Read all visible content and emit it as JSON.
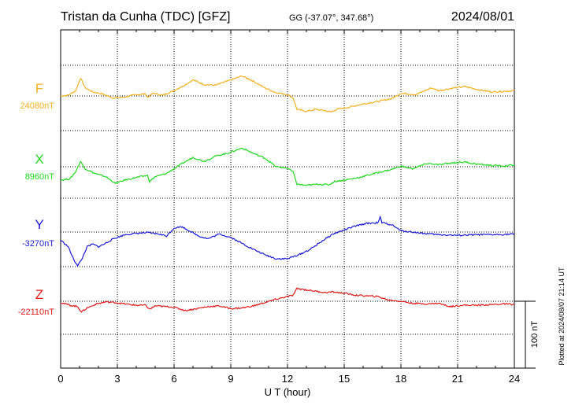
{
  "header": {
    "title": "Tristan da Cunha (TDC)  [GFZ]",
    "coords": "GG (-37.07°, 347.68°)",
    "date": "2024/08/01"
  },
  "footer": {
    "plotted": "Plotted at 2024/08/07 21:14 UT"
  },
  "scale_bar": {
    "label": "100 nT"
  },
  "chart_data": {
    "type": "line",
    "xlabel": "U T (hour)",
    "xlim": [
      0,
      24
    ],
    "xticks": [
      "0",
      "3",
      "6",
      "9",
      "12",
      "15",
      "18",
      "21",
      "24"
    ],
    "grid": true,
    "series": [
      {
        "name": "F",
        "baseline_label": "24080nT",
        "color": "#f0b020",
        "points": [
          [
            0,
            0
          ],
          [
            0.4,
            1
          ],
          [
            0.8,
            8
          ],
          [
            1.05,
            27
          ],
          [
            1.3,
            12
          ],
          [
            1.7,
            6
          ],
          [
            2.2,
            3
          ],
          [
            2.8,
            -3
          ],
          [
            3.3,
            -2
          ],
          [
            4,
            2
          ],
          [
            4.5,
            3
          ],
          [
            4.6,
            -2
          ],
          [
            4.9,
            4
          ],
          [
            5.4,
            1
          ],
          [
            6,
            8
          ],
          [
            6.6,
            17
          ],
          [
            7,
            24
          ],
          [
            7.6,
            17
          ],
          [
            8.2,
            16
          ],
          [
            8.8,
            22
          ],
          [
            9.6,
            30
          ],
          [
            10.2,
            22
          ],
          [
            10.8,
            12
          ],
          [
            11.4,
            5
          ],
          [
            12,
            2
          ],
          [
            12.3,
            -3
          ],
          [
            12.5,
            -20
          ],
          [
            13,
            -23
          ],
          [
            13.5,
            -20
          ],
          [
            14,
            -22
          ],
          [
            14.3,
            -24
          ],
          [
            14.6,
            -20
          ],
          [
            15.2,
            -17
          ],
          [
            16,
            -12
          ],
          [
            16.8,
            -8
          ],
          [
            17.5,
            -4
          ],
          [
            18,
            4
          ],
          [
            18.8,
            2
          ],
          [
            19.6,
            12
          ],
          [
            20,
            8
          ],
          [
            20.8,
            12
          ],
          [
            21.4,
            14
          ],
          [
            22,
            10
          ],
          [
            22.8,
            6
          ],
          [
            23.5,
            7
          ],
          [
            24,
            8
          ]
        ]
      },
      {
        "name": "X",
        "baseline_label": "8960nT",
        "color": "#22d622",
        "points": [
          [
            0,
            -20
          ],
          [
            0.5,
            -18
          ],
          [
            0.8,
            -7
          ],
          [
            1.05,
            8
          ],
          [
            1.3,
            -3
          ],
          [
            1.8,
            -10
          ],
          [
            2.4,
            -15
          ],
          [
            2.9,
            -25
          ],
          [
            3.4,
            -20
          ],
          [
            4,
            -16
          ],
          [
            4.6,
            -13
          ],
          [
            4.7,
            -22
          ],
          [
            5,
            -15
          ],
          [
            5.6,
            -10
          ],
          [
            6,
            -3
          ],
          [
            6.5,
            6
          ],
          [
            7,
            14
          ],
          [
            7.6,
            8
          ],
          [
            8.2,
            16
          ],
          [
            8.8,
            20
          ],
          [
            9.6,
            28
          ],
          [
            10.2,
            20
          ],
          [
            10.8,
            13
          ],
          [
            11.4,
            0
          ],
          [
            12,
            -2
          ],
          [
            12.3,
            -8
          ],
          [
            12.5,
            -26
          ],
          [
            13,
            -28
          ],
          [
            13.6,
            -26
          ],
          [
            14.2,
            -27
          ],
          [
            14.5,
            -22
          ],
          [
            15,
            -20
          ],
          [
            15.8,
            -16
          ],
          [
            16.6,
            -10
          ],
          [
            17.5,
            -4
          ],
          [
            18,
            1
          ],
          [
            18.6,
            -3
          ],
          [
            19.4,
            5
          ],
          [
            20,
            3
          ],
          [
            20.8,
            6
          ],
          [
            21.4,
            7
          ],
          [
            22,
            4
          ],
          [
            22.8,
            2
          ],
          [
            23.5,
            1
          ],
          [
            24,
            3
          ]
        ]
      },
      {
        "name": "Y",
        "baseline_label": "-3270nT",
        "color": "#1a1ad6",
        "points": [
          [
            0,
            -12
          ],
          [
            0.4,
            -22
          ],
          [
            0.7,
            -42
          ],
          [
            0.9,
            -50
          ],
          [
            1.1,
            -42
          ],
          [
            1.4,
            -22
          ],
          [
            1.7,
            -18
          ],
          [
            2,
            -22
          ],
          [
            2.3,
            -18
          ],
          [
            2.8,
            -10
          ],
          [
            3.4,
            -4
          ],
          [
            4,
            -2
          ],
          [
            4.6,
            -1
          ],
          [
            5.2,
            -3
          ],
          [
            5.6,
            -6
          ],
          [
            6,
            6
          ],
          [
            6.4,
            8
          ],
          [
            6.8,
            2
          ],
          [
            7.3,
            -6
          ],
          [
            7.8,
            -10
          ],
          [
            8.4,
            -3
          ],
          [
            9,
            -8
          ],
          [
            9.6,
            -17
          ],
          [
            10.2,
            -26
          ],
          [
            10.8,
            -34
          ],
          [
            11.4,
            -40
          ],
          [
            12,
            -40
          ],
          [
            12.6,
            -34
          ],
          [
            13.2,
            -26
          ],
          [
            13.8,
            -14
          ],
          [
            14.4,
            -3
          ],
          [
            15,
            3
          ],
          [
            15.6,
            9
          ],
          [
            16.2,
            13
          ],
          [
            16.8,
            14
          ],
          [
            16.9,
            22
          ],
          [
            17,
            14
          ],
          [
            17.5,
            11
          ],
          [
            18,
            2
          ],
          [
            18.6,
            0
          ],
          [
            19.2,
            -2
          ],
          [
            20,
            -4
          ],
          [
            21,
            -5
          ],
          [
            22,
            -4
          ],
          [
            23,
            -4
          ],
          [
            24,
            -3
          ]
        ]
      },
      {
        "name": "Z",
        "baseline_label": "-22110nT",
        "color": "#dd1a1a",
        "points": [
          [
            0,
            -2
          ],
          [
            0.5,
            -6
          ],
          [
            0.9,
            -8
          ],
          [
            1.1,
            -16
          ],
          [
            1.4,
            -10
          ],
          [
            1.9,
            -4
          ],
          [
            2.4,
            -1
          ],
          [
            2.9,
            -2
          ],
          [
            3.4,
            -4
          ],
          [
            4,
            -6
          ],
          [
            4.5,
            -6
          ],
          [
            4.7,
            -12
          ],
          [
            5,
            -7
          ],
          [
            5.6,
            -8
          ],
          [
            6,
            -9
          ],
          [
            6.6,
            -14
          ],
          [
            7.2,
            -11
          ],
          [
            7.8,
            -8
          ],
          [
            8.4,
            -7
          ],
          [
            9,
            -11
          ],
          [
            9.6,
            -10
          ],
          [
            10.2,
            -7
          ],
          [
            10.8,
            -2
          ],
          [
            11.4,
            3
          ],
          [
            12,
            7
          ],
          [
            12.3,
            9
          ],
          [
            12.5,
            19
          ],
          [
            13,
            17
          ],
          [
            13.5,
            15
          ],
          [
            14,
            13
          ],
          [
            14.4,
            14
          ],
          [
            15,
            12
          ],
          [
            15.6,
            9
          ],
          [
            16.2,
            8
          ],
          [
            16.8,
            7
          ],
          [
            17.3,
            2
          ],
          [
            18,
            0
          ],
          [
            18.6,
            -3
          ],
          [
            19.4,
            -4
          ],
          [
            20,
            -3
          ],
          [
            20.6,
            -8
          ],
          [
            21.2,
            -6
          ],
          [
            22,
            -6
          ],
          [
            22.8,
            -5
          ],
          [
            23.5,
            -4
          ],
          [
            24,
            -5
          ]
        ]
      }
    ]
  }
}
